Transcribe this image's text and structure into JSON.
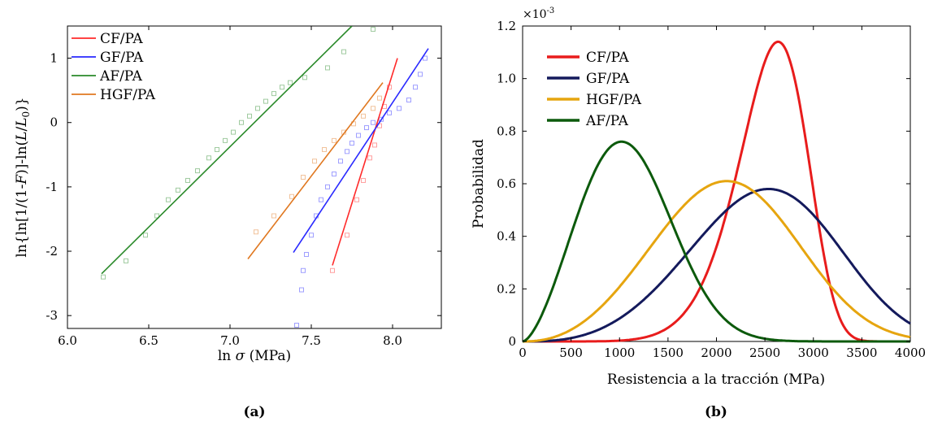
{
  "chart_data": [
    {
      "type": "scatter",
      "panel_label": "(a)",
      "xlabel_prefix": "ln ",
      "xlabel_symbol": "σ",
      "xlabel_unit": " (MPa)",
      "ylabel_parts": [
        "ln{ln[1/(1-",
        "F",
        ")]-ln(",
        "L",
        "/",
        "L",
        "0",
        ")}"
      ],
      "xlim": [
        6.0,
        8.3
      ],
      "ylim": [
        -3.2,
        1.5
      ],
      "x_ticks": [
        {
          "v": 6.0,
          "label": "6.0"
        },
        {
          "v": 6.5,
          "label": "6.5"
        },
        {
          "v": 7.0,
          "label": "7.0"
        },
        {
          "v": 7.5,
          "label": "7.5"
        },
        {
          "v": 8.0,
          "label": "8.0"
        }
      ],
      "y_ticks": [
        {
          "v": 1,
          "label": "1"
        },
        {
          "v": 0,
          "label": "0"
        },
        {
          "v": -1,
          "label": "-1"
        },
        {
          "v": -2,
          "label": "-2"
        },
        {
          "v": -3,
          "label": "-3"
        }
      ],
      "legend_position": "top-left",
      "series": [
        {
          "name": "CF/PA",
          "color": "#ff2a2a",
          "fit": [
            [
              7.63,
              -2.22
            ],
            [
              8.03,
              1.0
            ]
          ],
          "points": [
            [
              7.63,
              -2.3
            ],
            [
              7.72,
              -1.75
            ],
            [
              7.78,
              -1.2
            ],
            [
              7.82,
              -0.9
            ],
            [
              7.86,
              -0.55
            ],
            [
              7.89,
              -0.35
            ],
            [
              7.92,
              -0.05
            ],
            [
              7.95,
              0.25
            ],
            [
              7.98,
              0.55
            ]
          ]
        },
        {
          "name": "GF/PA",
          "color": "#2a2aff",
          "fit": [
            [
              7.39,
              -2.02
            ],
            [
              8.22,
              1.15
            ]
          ],
          "points": [
            [
              7.41,
              -3.15
            ],
            [
              7.44,
              -2.6
            ],
            [
              7.45,
              -2.3
            ],
            [
              7.47,
              -2.05
            ],
            [
              7.5,
              -1.75
            ],
            [
              7.53,
              -1.45
            ],
            [
              7.56,
              -1.2
            ],
            [
              7.6,
              -1.0
            ],
            [
              7.64,
              -0.8
            ],
            [
              7.68,
              -0.6
            ],
            [
              7.72,
              -0.45
            ],
            [
              7.75,
              -0.32
            ],
            [
              7.79,
              -0.2
            ],
            [
              7.84,
              -0.08
            ],
            [
              7.88,
              0.0
            ],
            [
              7.93,
              0.05
            ],
            [
              7.98,
              0.15
            ],
            [
              8.04,
              0.22
            ],
            [
              8.1,
              0.35
            ],
            [
              8.14,
              0.55
            ],
            [
              8.17,
              0.75
            ],
            [
              8.2,
              1.0
            ]
          ]
        },
        {
          "name": "AF/PA",
          "color": "#2a8a2a",
          "fit": [
            [
              6.21,
              -2.35
            ],
            [
              7.75,
              1.5
            ]
          ],
          "points": [
            [
              6.22,
              -2.4
            ],
            [
              6.36,
              -2.15
            ],
            [
              6.48,
              -1.75
            ],
            [
              6.55,
              -1.45
            ],
            [
              6.62,
              -1.2
            ],
            [
              6.68,
              -1.05
            ],
            [
              6.74,
              -0.9
            ],
            [
              6.8,
              -0.75
            ],
            [
              6.87,
              -0.55
            ],
            [
              6.92,
              -0.42
            ],
            [
              6.97,
              -0.28
            ],
            [
              7.02,
              -0.15
            ],
            [
              7.07,
              0.0
            ],
            [
              7.12,
              0.1
            ],
            [
              7.17,
              0.22
            ],
            [
              7.22,
              0.33
            ],
            [
              7.27,
              0.45
            ],
            [
              7.32,
              0.55
            ],
            [
              7.37,
              0.62
            ],
            [
              7.46,
              0.7
            ],
            [
              7.6,
              0.85
            ],
            [
              7.7,
              1.1
            ],
            [
              7.88,
              1.45
            ]
          ]
        },
        {
          "name": "HGF/PA",
          "color": "#e07820",
          "fit": [
            [
              7.11,
              -2.12
            ],
            [
              7.94,
              0.62
            ]
          ],
          "points": [
            [
              7.16,
              -1.7
            ],
            [
              7.27,
              -1.45
            ],
            [
              7.38,
              -1.15
            ],
            [
              7.45,
              -0.85
            ],
            [
              7.52,
              -0.6
            ],
            [
              7.58,
              -0.42
            ],
            [
              7.64,
              -0.28
            ],
            [
              7.7,
              -0.15
            ],
            [
              7.76,
              -0.02
            ],
            [
              7.82,
              0.1
            ],
            [
              7.88,
              0.22
            ],
            [
              7.92,
              0.38
            ]
          ]
        }
      ]
    },
    {
      "type": "line",
      "panel_label": "(b)",
      "xlabel": "Resistencia a la tracción (MPa)",
      "ylabel": "Probabilidad",
      "scale_note": "×10",
      "scale_exp": "-3",
      "xlim": [
        0,
        4000
      ],
      "ylim": [
        0,
        1.2
      ],
      "x_ticks": [
        {
          "v": 0,
          "label": "0"
        },
        {
          "v": 500,
          "label": "500"
        },
        {
          "v": 1000,
          "label": "1000"
        },
        {
          "v": 1500,
          "label": "1500"
        },
        {
          "v": 2000,
          "label": "2000"
        },
        {
          "v": 2500,
          "label": "2500"
        },
        {
          "v": 3000,
          "label": "3000"
        },
        {
          "v": 3500,
          "label": "3500"
        },
        {
          "v": 4000,
          "label": "4000"
        }
      ],
      "y_ticks": [
        {
          "v": 0,
          "label": "0"
        },
        {
          "v": 0.2,
          "label": "0.2"
        },
        {
          "v": 0.4,
          "label": "0.4"
        },
        {
          "v": 0.6,
          "label": "0.6"
        },
        {
          "v": 0.8,
          "label": "0.8"
        },
        {
          "v": 1.0,
          "label": "1.0"
        },
        {
          "v": 1.2,
          "label": "1.2"
        }
      ],
      "legend_position": "top-left",
      "series": [
        {
          "name": "CF/PA",
          "color": "#e81c1c",
          "weibull_scale": 2680,
          "weibull_shape": 8.0,
          "peak": 1.14
        },
        {
          "name": "GF/PA",
          "color": "#141a5c",
          "weibull_scale": 2750,
          "weibull_shape": 3.8,
          "peak": 0.58
        },
        {
          "name": "HGF/PA",
          "color": "#e6a50f",
          "weibull_scale": 2350,
          "weibull_shape": 3.3,
          "peak": 0.61
        },
        {
          "name": "AF/PA",
          "color": "#0c5a0c",
          "weibull_scale": 1230,
          "weibull_shape": 2.6,
          "peak": 0.76
        }
      ]
    }
  ]
}
